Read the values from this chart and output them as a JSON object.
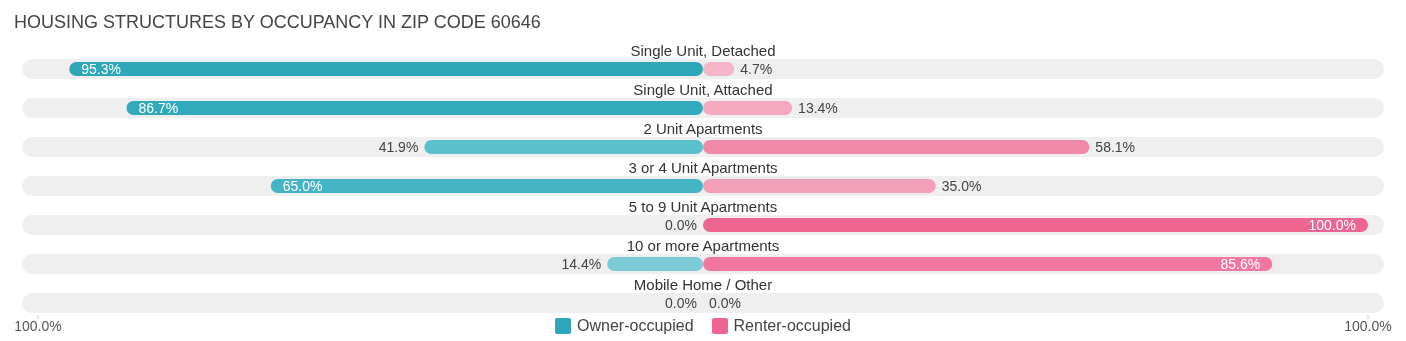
{
  "chart_data": {
    "type": "bar",
    "orientation": "horizontal",
    "title": "HOUSING STRUCTURES BY OCCUPANCY IN ZIP CODE 60646",
    "categories": [
      "Single Unit, Detached",
      "Single Unit, Attached",
      "2 Unit Apartments",
      "3 or 4 Unit Apartments",
      "5 to 9 Unit Apartments",
      "10 or more Apartments",
      "Mobile Home / Other"
    ],
    "series": [
      {
        "name": "Owner-occupied",
        "color": "#2ea8b8",
        "values": [
          95.3,
          86.7,
          41.9,
          65.0,
          0.0,
          14.4,
          0.0
        ],
        "base": [
          -95.3,
          -86.7,
          -41.9,
          -65.0,
          null,
          -14.4,
          null
        ],
        "value_labels": [
          "95.3%",
          "86.7%",
          "41.9%",
          "65.0%",
          "0.0%",
          "14.4%",
          "0.0%"
        ],
        "colors": [
          "#2ea8b8",
          "#33aabb",
          "#5bbfcc",
          "#45b4c4",
          "#8fd3dc",
          "#7ccbd6",
          "#8fd3dc"
        ]
      },
      {
        "name": "Renter-occupied",
        "color": "#ef6591",
        "values": [
          4.7,
          13.4,
          58.1,
          35.0,
          100.0,
          85.6,
          0.0
        ],
        "value_labels": [
          "4.7%",
          "13.4%",
          "58.1%",
          "35.0%",
          "100.0%",
          "85.6%",
          "0.0%"
        ],
        "colors": [
          "#f7b5c9",
          "#f5a9c0",
          "#f088aa",
          "#f49fba",
          "#ef6591",
          "#f0789f",
          "#f7b5c9"
        ]
      }
    ],
    "xlim": [
      -100,
      100
    ],
    "xticks": [
      {
        "value": -100,
        "label": "100.0%"
      },
      {
        "value": 100,
        "label": "100.0%"
      }
    ],
    "legend": "bottom"
  }
}
